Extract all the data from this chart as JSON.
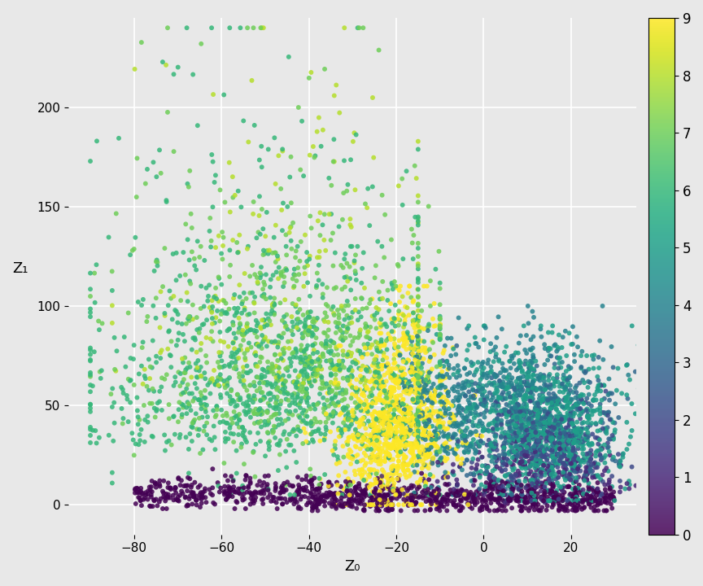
{
  "xlabel": "Z₀",
  "ylabel": "Z₁",
  "xlim": [
    -95,
    35
  ],
  "ylim": [
    -15,
    245
  ],
  "colormap": "viridis",
  "background_color": "#e8e8e8",
  "grid_color": "white",
  "marker_size": 18,
  "alpha": 0.85,
  "random_seed": 42
}
